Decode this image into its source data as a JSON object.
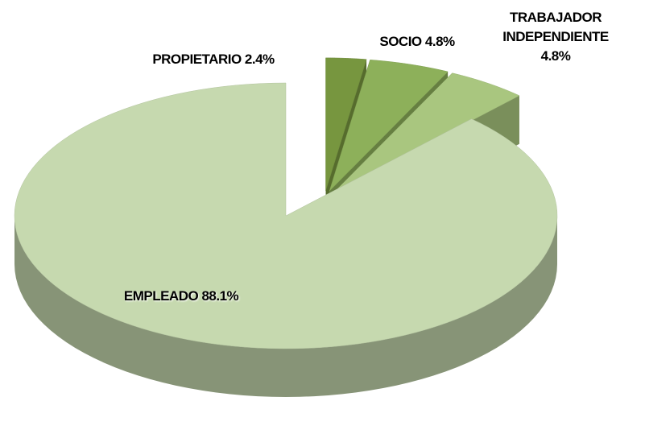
{
  "chart_data": {
    "type": "pie3d",
    "categories": [
      "PROPIETARIO",
      "SOCIO",
      "TRABAJADOR INDEPENDIENTE",
      "EMPLEADO"
    ],
    "values": [
      2.4,
      4.8,
      4.8,
      88.1
    ],
    "value_labels": [
      "2.4%",
      "4.8%",
      "4.8%",
      "88.1%"
    ],
    "colors": [
      "#77963f",
      "#8db05a",
      "#a9c67f",
      "#c6d9af"
    ]
  }
}
